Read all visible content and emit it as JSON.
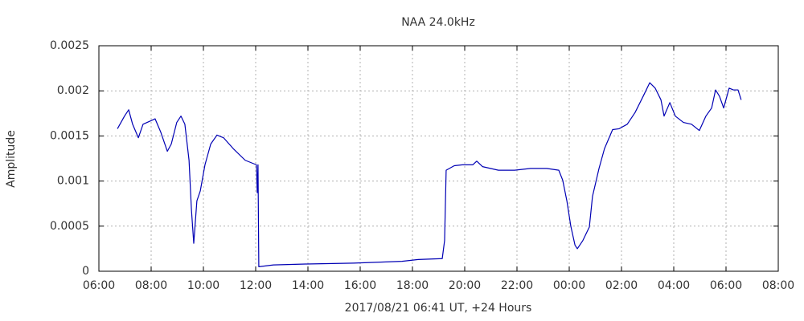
{
  "chart_data": {
    "type": "line",
    "title": "NAA 24.0kHz",
    "xlabel": "2017/08/21 06:41 UT, +24 Hours",
    "ylabel": "Amplitude",
    "x": [
      0.71,
      0.98,
      1.14,
      1.29,
      1.51,
      1.69,
      2.0,
      2.15,
      2.37,
      2.62,
      2.77,
      2.98,
      3.14,
      3.29,
      3.45,
      3.54,
      3.63,
      3.75,
      3.88,
      4.06,
      4.28,
      4.52,
      4.77,
      5.14,
      5.6,
      6.03,
      6.06,
      6.09,
      6.12,
      6.68,
      7.91,
      9.75,
      10.68,
      11.6,
      12.22,
      13.14,
      13.23,
      13.29,
      13.6,
      13.91,
      14.31,
      14.46,
      14.68,
      15.29,
      15.91,
      16.52,
      17.14,
      17.6,
      17.75,
      17.91,
      18.06,
      18.22,
      18.31,
      18.52,
      18.77,
      18.89,
      19.14,
      19.35,
      19.66,
      19.91,
      20.22,
      20.52,
      20.83,
      21.08,
      21.29,
      21.51,
      21.63,
      21.85,
      22.06,
      22.37,
      22.68,
      22.98,
      23.23,
      23.45,
      23.6,
      23.75,
      23.91,
      24.12,
      24.28,
      24.46,
      24.58
    ],
    "series": [
      {
        "color": "#0000b4",
        "values": [
          0.00158,
          0.00172,
          0.00179,
          0.00163,
          0.00148,
          0.00163,
          0.00167,
          0.00169,
          0.00154,
          0.00133,
          0.00141,
          0.00165,
          0.00172,
          0.00163,
          0.00123,
          0.00069,
          0.00031,
          0.00078,
          0.00089,
          0.00118,
          0.00141,
          0.00151,
          0.00148,
          0.00136,
          0.00123,
          0.00118,
          0.00087,
          0.00118,
          5e-05,
          7e-05,
          8e-05,
          9e-05,
          0.0001,
          0.00011,
          0.00013,
          0.00014,
          0.00034,
          0.00112,
          0.00117,
          0.00118,
          0.00118,
          0.00122,
          0.00116,
          0.00112,
          0.00112,
          0.00114,
          0.00114,
          0.00112,
          0.00101,
          0.00078,
          0.0005,
          0.00029,
          0.00025,
          0.00034,
          0.00049,
          0.00083,
          0.00114,
          0.00136,
          0.00157,
          0.00158,
          0.00163,
          0.00176,
          0.00194,
          0.00209,
          0.00203,
          0.0019,
          0.00172,
          0.00187,
          0.00172,
          0.00165,
          0.00163,
          0.00156,
          0.00172,
          0.00181,
          0.00201,
          0.00194,
          0.00181,
          0.00203,
          0.00201,
          0.00201,
          0.0019
        ]
      }
    ],
    "xlim": [
      0,
      26
    ],
    "xticks": [
      {
        "value": 0,
        "label": "06:00"
      },
      {
        "value": 2,
        "label": "08:00"
      },
      {
        "value": 4,
        "label": "10:00"
      },
      {
        "value": 6,
        "label": "12:00"
      },
      {
        "value": 8,
        "label": "14:00"
      },
      {
        "value": 10,
        "label": "16:00"
      },
      {
        "value": 12,
        "label": "18:00"
      },
      {
        "value": 14,
        "label": "20:00"
      },
      {
        "value": 16,
        "label": "22:00"
      },
      {
        "value": 18,
        "label": "00:00"
      },
      {
        "value": 20,
        "label": "02:00"
      },
      {
        "value": 22,
        "label": "04:00"
      },
      {
        "value": 24,
        "label": "06:00"
      },
      {
        "value": 26,
        "label": "08:00"
      }
    ],
    "ylim": [
      0,
      0.0025
    ],
    "yticks": [
      0,
      0.0005,
      0.001,
      0.0015,
      0.002,
      0.0025
    ],
    "grid": true
  }
}
